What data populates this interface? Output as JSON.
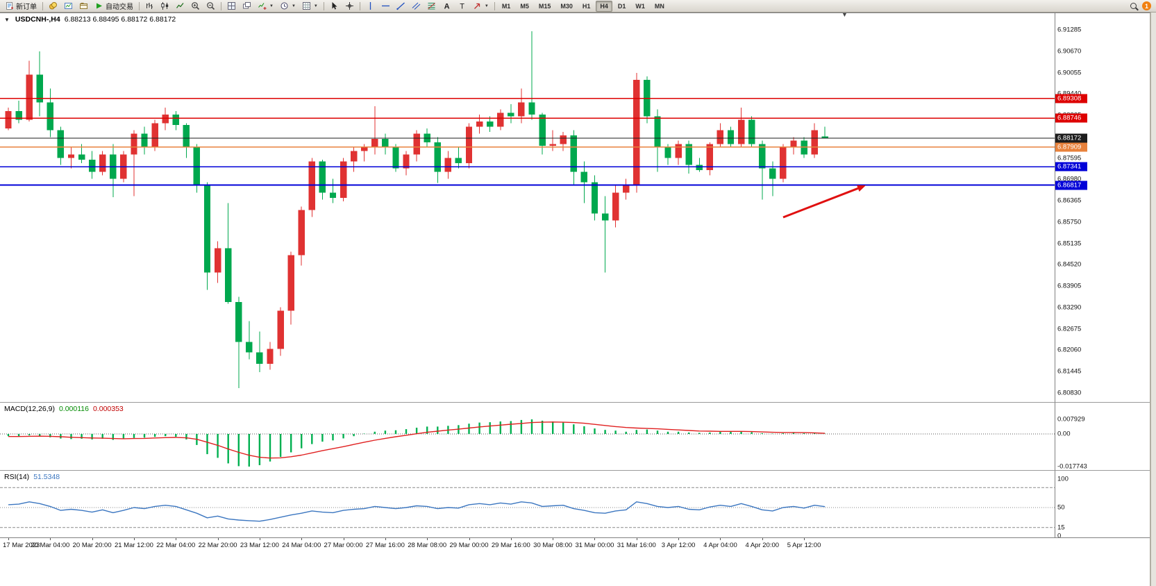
{
  "toolbar": {
    "new_order_label": "新订单",
    "autotrade_label": "自动交易",
    "timeframes": [
      "M1",
      "M5",
      "M15",
      "M30",
      "H1",
      "H4",
      "D1",
      "W1",
      "MN"
    ],
    "active_timeframe": "H4",
    "notification_count": "1"
  },
  "chart_data": [
    {
      "type": "candlestick",
      "symbol": "USDCNH-",
      "timeframe": "H4",
      "title": "USDCNH-,H4",
      "ohlc_display": "6.88213 6.88495 6.88172 6.88172",
      "open": 6.88213,
      "high": 6.88495,
      "low": 6.88172,
      "close": 6.88172,
      "up_color": "#E03232",
      "down_color": "#00A84E",
      "y_axis": {
        "price_top": 6.91767,
        "price_bottom": 6.80567,
        "labels": [
          6.91285,
          6.9067,
          6.90055,
          6.8944,
          6.88825,
          6.8821,
          6.87595,
          6.8698,
          6.86365,
          6.8575,
          6.85135,
          6.8452,
          6.83905,
          6.8329,
          6.82675,
          6.8206,
          6.81445,
          6.8083
        ]
      },
      "h_lines": [
        {
          "price": 6.89308,
          "label": "6.89308",
          "color": "#DD0000",
          "width": 1.4
        },
        {
          "price": 6.88746,
          "label": "6.88746",
          "color": "#DD0000",
          "width": 1.4
        },
        {
          "price": 6.88172,
          "label": "6.88172",
          "color": "#1d1d1d",
          "width": 1.0
        },
        {
          "price": 6.87909,
          "label": "6.87909",
          "color": "#E8823C",
          "width": 1.4
        },
        {
          "price": 6.87341,
          "label": "6.87341",
          "color": "#0000D8",
          "width": 1.8
        },
        {
          "price": 6.86817,
          "label": "6.86817",
          "color": "#0000D8",
          "width": 1.8
        }
      ],
      "x_labels": [
        "17 Mar 2023",
        "20 Mar 04:00",
        "20 Mar 20:00",
        "21 Mar 12:00",
        "22 Mar 04:00",
        "22 Mar 20:00",
        "23 Mar 12:00",
        "24 Mar 04:00",
        "27 Mar 00:00",
        "27 Mar 16:00",
        "28 Mar 08:00",
        "29 Mar 00:00",
        "29 Mar 16:00",
        "30 Mar 08:00",
        "31 Mar 00:00",
        "31 Mar 16:00",
        "3 Apr 12:00",
        "4 Apr 04:00",
        "4 Apr 20:00",
        "5 Apr 12:00"
      ],
      "candles": [
        [
          6.8845,
          6.8905,
          6.884,
          6.8895
        ],
        [
          6.8895,
          6.8925,
          6.886,
          6.887
        ],
        [
          6.887,
          6.904,
          6.8865,
          6.9
        ],
        [
          6.9,
          6.9067,
          6.888,
          6.892
        ],
        [
          6.892,
          6.896,
          6.882,
          6.884
        ],
        [
          6.884,
          6.885,
          6.874,
          6.876
        ],
        [
          6.876,
          6.879,
          6.873,
          6.877
        ],
        [
          6.877,
          6.88,
          6.8745,
          6.8755
        ],
        [
          6.8755,
          6.878,
          6.87,
          6.872
        ],
        [
          6.872,
          6.878,
          6.871,
          6.877
        ],
        [
          6.877,
          6.88,
          6.8647,
          6.87
        ],
        [
          6.87,
          6.878,
          6.869,
          6.877
        ],
        [
          6.877,
          6.884,
          6.865,
          6.883
        ],
        [
          6.883,
          6.885,
          6.877,
          6.879
        ],
        [
          6.879,
          6.887,
          6.878,
          6.886
        ],
        [
          6.886,
          6.8905,
          6.884,
          6.8885
        ],
        [
          6.8885,
          6.8895,
          6.884,
          6.8855
        ],
        [
          6.8855,
          6.886,
          6.876,
          6.879
        ],
        [
          6.879,
          6.88,
          6.866,
          6.868
        ],
        [
          6.868,
          6.869,
          6.838,
          6.843
        ],
        [
          6.843,
          6.852,
          6.84,
          6.85
        ],
        [
          6.85,
          6.863,
          6.834,
          6.8345
        ],
        [
          6.8345,
          6.836,
          6.8097,
          6.823
        ],
        [
          6.823,
          6.829,
          6.818,
          6.82
        ],
        [
          6.82,
          6.826,
          6.8143,
          6.8167
        ],
        [
          6.8167,
          6.823,
          6.815,
          6.821
        ],
        [
          6.821,
          6.833,
          6.819,
          6.832
        ],
        [
          6.832,
          6.849,
          6.828,
          6.848
        ],
        [
          6.848,
          6.862,
          6.845,
          6.861
        ],
        [
          6.861,
          6.876,
          6.859,
          6.875
        ],
        [
          6.875,
          6.8755,
          6.864,
          6.866
        ],
        [
          6.866,
          6.87,
          6.863,
          6.8645
        ],
        [
          6.8645,
          6.876,
          6.8635,
          6.875
        ],
        [
          6.875,
          6.879,
          6.872,
          6.878
        ],
        [
          6.878,
          6.88,
          6.875,
          6.879
        ],
        [
          6.879,
          6.8909,
          6.877,
          6.8815
        ],
        [
          6.8815,
          6.883,
          6.877,
          6.879
        ],
        [
          6.879,
          6.88,
          6.872,
          6.873
        ],
        [
          6.873,
          6.878,
          6.871,
          6.877
        ],
        [
          6.877,
          6.884,
          6.875,
          6.883
        ],
        [
          6.883,
          6.8845,
          6.879,
          6.8805
        ],
        [
          6.8805,
          6.882,
          6.8688,
          6.872
        ],
        [
          6.872,
          6.878,
          6.87,
          6.876
        ],
        [
          6.876,
          6.879,
          6.873,
          6.8745
        ],
        [
          6.8745,
          6.886,
          6.873,
          6.885
        ],
        [
          6.885,
          6.8885,
          6.883,
          6.8865
        ],
        [
          6.8865,
          6.888,
          6.8835,
          6.885
        ],
        [
          6.885,
          6.89,
          6.884,
          6.889
        ],
        [
          6.889,
          6.8915,
          6.886,
          6.888
        ],
        [
          6.888,
          6.896,
          6.886,
          6.892
        ],
        [
          6.892,
          6.9125,
          6.887,
          6.8885
        ],
        [
          6.8885,
          6.889,
          6.877,
          6.8795
        ],
        [
          6.8795,
          6.884,
          6.878,
          6.88
        ],
        [
          6.88,
          6.8835,
          6.878,
          6.8825
        ],
        [
          6.8825,
          6.884,
          6.868,
          6.872
        ],
        [
          6.872,
          6.875,
          6.863,
          6.869
        ],
        [
          6.869,
          6.871,
          6.858,
          6.86
        ],
        [
          6.86,
          6.865,
          6.843,
          6.858
        ],
        [
          6.858,
          6.868,
          6.856,
          6.866
        ],
        [
          6.866,
          6.87,
          6.864,
          6.868
        ],
        [
          6.868,
          6.9005,
          6.866,
          6.8985
        ],
        [
          6.8985,
          6.8995,
          6.886,
          6.888
        ],
        [
          6.888,
          6.89,
          6.872,
          6.879
        ],
        [
          6.879,
          6.88,
          6.874,
          6.876
        ],
        [
          6.876,
          6.881,
          6.874,
          6.88
        ],
        [
          6.88,
          6.881,
          6.8715,
          6.874
        ],
        [
          6.874,
          6.876,
          6.872,
          6.8725
        ],
        [
          6.8725,
          6.8805,
          6.871,
          6.88
        ],
        [
          6.88,
          6.886,
          6.879,
          6.884
        ],
        [
          6.884,
          6.885,
          6.879,
          6.88
        ],
        [
          6.88,
          6.8905,
          6.879,
          6.887
        ],
        [
          6.887,
          6.888,
          6.879,
          6.88
        ],
        [
          6.88,
          6.881,
          6.864,
          6.873
        ],
        [
          6.873,
          6.875,
          6.865,
          6.87
        ],
        [
          6.87,
          6.88,
          6.869,
          6.879
        ],
        [
          6.879,
          6.882,
          6.877,
          6.881
        ],
        [
          6.881,
          6.882,
          6.876,
          6.877
        ],
        [
          6.877,
          6.886,
          6.876,
          6.884
        ],
        [
          6.88213,
          6.88495,
          6.88172,
          6.88172
        ]
      ],
      "arrow": {
        "color": "#E01010",
        "from": [
          1128,
          294
        ],
        "to": [
          1247,
          248
        ]
      }
    },
    {
      "type": "bar",
      "name": "MACD",
      "label": "MACD(12,26,9)",
      "value_main": "0.000116",
      "value_signal": "0.000353",
      "histogram_color": "#00B050",
      "signal_color": "#E02020",
      "axis": {
        "max": 0.007929,
        "min": -0.017743,
        "labels": [
          "0.007929",
          "0.00",
          "-0.017743"
        ],
        "label_values": [
          0.007929,
          0,
          -0.017743
        ]
      },
      "histogram": [
        -0.0012,
        -0.0015,
        -0.0008,
        -0.001,
        -0.0018,
        -0.0025,
        -0.0028,
        -0.0026,
        -0.003,
        -0.0026,
        -0.0032,
        -0.0028,
        -0.0022,
        -0.002,
        -0.0016,
        -0.0012,
        -0.0015,
        -0.003,
        -0.006,
        -0.011,
        -0.013,
        -0.016,
        -0.0175,
        -0.017743,
        -0.017,
        -0.015,
        -0.0125,
        -0.01,
        -0.0078,
        -0.0055,
        -0.0042,
        -0.0035,
        -0.0024,
        -0.0012,
        0.0002,
        0.0012,
        0.0018,
        0.002,
        0.0026,
        0.0034,
        0.004,
        0.004,
        0.0044,
        0.0048,
        0.0056,
        0.0062,
        0.0064,
        0.0068,
        0.007,
        0.0076,
        0.007929,
        0.0072,
        0.0068,
        0.0062,
        0.0052,
        0.0042,
        0.003,
        0.0022,
        0.0018,
        0.0012,
        0.0022,
        0.0024,
        0.0018,
        0.0012,
        0.0012,
        0.0008,
        0.0006,
        0.0008,
        0.0012,
        0.0012,
        0.0014,
        0.001,
        0.0004,
        0.0002,
        0.0004,
        0.0006,
        0.0004,
        0.0005,
        0.000116
      ],
      "signal": [
        -0.0014,
        -0.0014,
        -0.0013,
        -0.0012,
        -0.0013,
        -0.0015,
        -0.0018,
        -0.002,
        -0.0022,
        -0.0023,
        -0.0025,
        -0.0026,
        -0.0025,
        -0.0024,
        -0.0022,
        -0.002,
        -0.0019,
        -0.0021,
        -0.0029,
        -0.0045,
        -0.0062,
        -0.0082,
        -0.01,
        -0.0116,
        -0.0127,
        -0.0131,
        -0.013,
        -0.0124,
        -0.0115,
        -0.0103,
        -0.0091,
        -0.008,
        -0.0069,
        -0.0057,
        -0.0045,
        -0.0034,
        -0.0024,
        -0.0015,
        -0.0007,
        0.0001,
        0.0009,
        0.0015,
        0.0021,
        0.0026,
        0.0032,
        0.0038,
        0.0043,
        0.0048,
        0.0053,
        0.0057,
        0.0062,
        0.0064,
        0.0065,
        0.0064,
        0.0062,
        0.0058,
        0.0052,
        0.0046,
        0.004,
        0.0035,
        0.0032,
        0.003,
        0.0028,
        0.0025,
        0.0022,
        0.0019,
        0.0016,
        0.0015,
        0.0014,
        0.0014,
        0.0014,
        0.0013,
        0.0011,
        0.0009,
        0.0008,
        0.0008,
        0.0007,
        0.0006,
        0.000353
      ]
    },
    {
      "type": "line",
      "name": "RSI",
      "label": "RSI(14)",
      "value_display": "51.5348",
      "line_color": "#3B76C0",
      "axis": {
        "max": 100,
        "min": 0,
        "labels": [
          "100",
          "50",
          "15",
          "0"
        ],
        "label_values": [
          100,
          50,
          15,
          0
        ],
        "levels": [
          85,
          50,
          15
        ]
      },
      "values": [
        55,
        56,
        60,
        57,
        52,
        45,
        47,
        45,
        42,
        46,
        41,
        45,
        50,
        48,
        52,
        54,
        52,
        46,
        40,
        32,
        35,
        30,
        28,
        27,
        26,
        29,
        33,
        37,
        40,
        44,
        42,
        41,
        45,
        47,
        48,
        52,
        50,
        48,
        50,
        53,
        52,
        48,
        50,
        49,
        55,
        57,
        55,
        58,
        56,
        60,
        58,
        52,
        53,
        54,
        48,
        45,
        41,
        40,
        44,
        46,
        60,
        57,
        52,
        50,
        52,
        47,
        46,
        51,
        54,
        52,
        57,
        52,
        46,
        44,
        50,
        52,
        49,
        54,
        51.5348
      ]
    }
  ]
}
